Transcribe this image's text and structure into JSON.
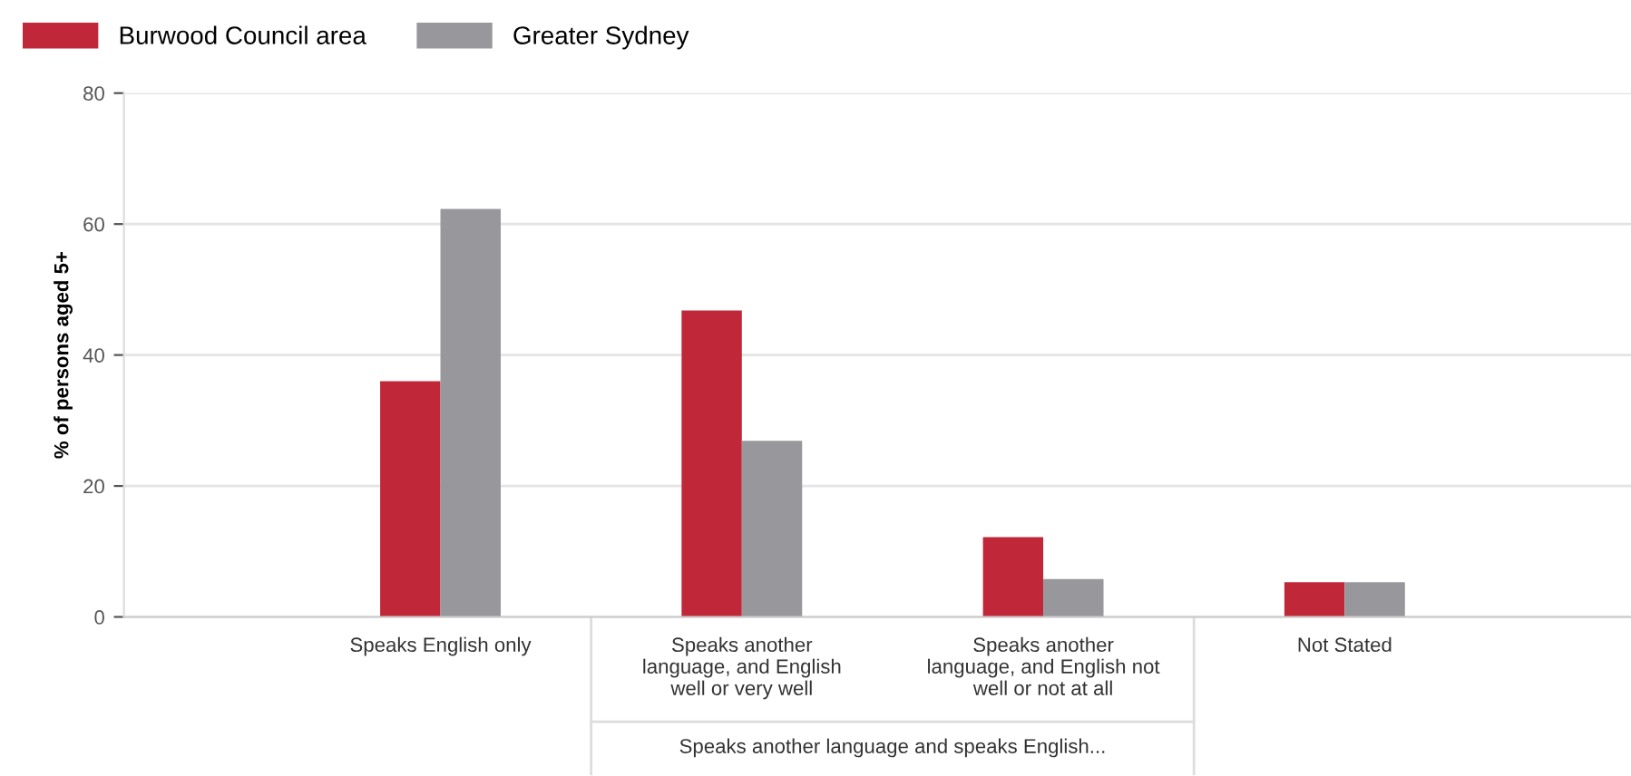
{
  "chart_data": {
    "type": "bar",
    "categories": [
      "Speaks English only",
      "Speaks another\nlanguage, and English\nwell or very well",
      "Speaks another\nlanguage, and English not\nwell or not at all",
      "Not Stated"
    ],
    "series": [
      {
        "name": "Burwood Council area",
        "color": "#c0283a",
        "values": [
          36.0,
          46.8,
          12.2,
          5.3
        ]
      },
      {
        "name": "Greater Sydney",
        "color": "#97979c",
        "values": [
          62.3,
          26.9,
          5.8,
          5.3
        ]
      }
    ],
    "ylabel": "% of persons aged 5+",
    "ylim": [
      0,
      80
    ],
    "yticks": [
      0,
      20,
      40,
      60,
      80
    ],
    "grid": "y",
    "legend": "top left",
    "annotations": [
      "Speaks another language and speaks English..."
    ]
  }
}
